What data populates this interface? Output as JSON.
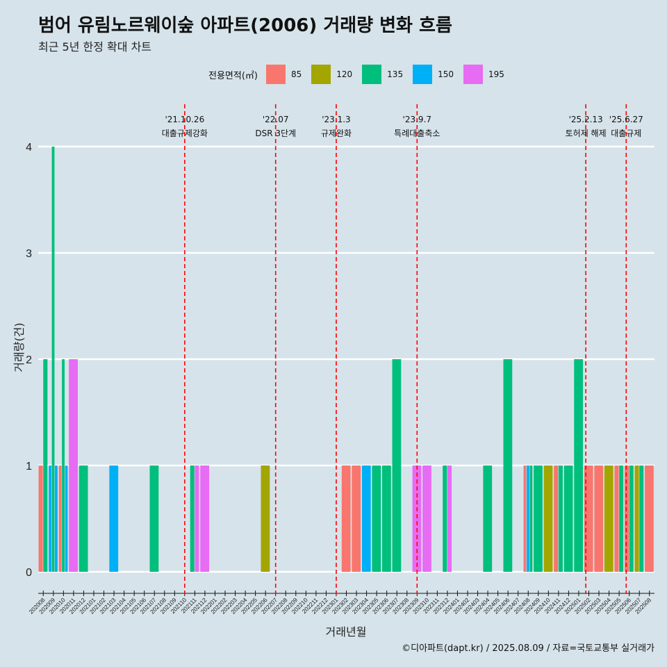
{
  "title": "범어 유림노르웨이숲 아파트(2006) 거래량 변화 흐름",
  "subtitle": "최근 5년 한정 확대 차트",
  "footer": "©디아파트(dapt.kr) / 2025.08.09 / 자료=국토교통부 실거래가",
  "colors": {
    "background": "#d6e3ea",
    "grid": "#ffffff",
    "event_line": "#ff0000"
  },
  "chart_data": {
    "type": "bar",
    "xlabel": "거래년월",
    "ylabel": "거래량(건)",
    "ylim": [
      0,
      4
    ],
    "y_ticks": [
      "0",
      "1",
      "2",
      "3",
      "4"
    ],
    "legend_title": "전용면적(㎡)",
    "legend_position": "top",
    "legend": [
      {
        "name": "85",
        "color": "#f8766d"
      },
      {
        "name": "120",
        "color": "#a3a500"
      },
      {
        "name": "135",
        "color": "#00bf7d"
      },
      {
        "name": "150",
        "color": "#00b0f6"
      },
      {
        "name": "195",
        "color": "#e76bf3"
      }
    ],
    "categories": [
      "202008",
      "202009",
      "202010",
      "202011",
      "202012",
      "202101",
      "202102",
      "202103",
      "202104",
      "202105",
      "202106",
      "202107",
      "202108",
      "202109",
      "202110",
      "202111",
      "202112",
      "202201",
      "202202",
      "202203",
      "202204",
      "202205",
      "202206",
      "202207",
      "202208",
      "202209",
      "202210",
      "202211",
      "202212",
      "202301",
      "202302",
      "202303",
      "202304",
      "202305",
      "202306",
      "202307",
      "202308",
      "202309",
      "202310",
      "202311",
      "202312",
      "202401",
      "202402",
      "202403",
      "202404",
      "202405",
      "202406",
      "202407",
      "202408",
      "202409",
      "202410",
      "202411",
      "202412",
      "202501",
      "202502",
      "202503",
      "202504",
      "202505",
      "202506",
      "202507",
      "202508"
    ],
    "bars": [
      {
        "month": "202008",
        "segments": [
          {
            "area": "85",
            "value": 1
          },
          {
            "area": "135",
            "value": 2
          }
        ]
      },
      {
        "month": "202009",
        "segments": [
          {
            "area": "150",
            "value": 1
          },
          {
            "area": "135",
            "value": 4
          },
          {
            "area": "150",
            "value": 1
          }
        ]
      },
      {
        "month": "202010",
        "segments": [
          {
            "area": "85",
            "value": 1
          },
          {
            "area": "135",
            "value": 2
          },
          {
            "area": "150",
            "value": 1
          }
        ]
      },
      {
        "month": "202011",
        "segments": [
          {
            "area": "195",
            "value": 2
          }
        ]
      },
      {
        "month": "202012",
        "segments": [
          {
            "area": "135",
            "value": 1
          }
        ]
      },
      {
        "month": "202103",
        "segments": [
          {
            "area": "150",
            "value": 1
          }
        ]
      },
      {
        "month": "202107",
        "segments": [
          {
            "area": "135",
            "value": 1
          }
        ]
      },
      {
        "month": "202111",
        "segments": [
          {
            "area": "135",
            "value": 1
          },
          {
            "area": "195",
            "value": 1
          }
        ]
      },
      {
        "month": "202112",
        "segments": [
          {
            "area": "195",
            "value": 1
          }
        ]
      },
      {
        "month": "202206",
        "segments": [
          {
            "area": "120",
            "value": 1
          }
        ]
      },
      {
        "month": "202302",
        "segments": [
          {
            "area": "85",
            "value": 1
          }
        ]
      },
      {
        "month": "202303",
        "segments": [
          {
            "area": "85",
            "value": 1
          }
        ]
      },
      {
        "month": "202304",
        "segments": [
          {
            "area": "150",
            "value": 1
          }
        ]
      },
      {
        "month": "202305",
        "segments": [
          {
            "area": "135",
            "value": 1
          }
        ]
      },
      {
        "month": "202306",
        "segments": [
          {
            "area": "135",
            "value": 1
          }
        ]
      },
      {
        "month": "202307",
        "segments": [
          {
            "area": "135",
            "value": 2
          }
        ]
      },
      {
        "month": "202309",
        "segments": [
          {
            "area": "195",
            "value": 1
          }
        ]
      },
      {
        "month": "202310",
        "segments": [
          {
            "area": "195",
            "value": 1
          }
        ]
      },
      {
        "month": "202312",
        "segments": [
          {
            "area": "135",
            "value": 1
          },
          {
            "area": "195",
            "value": 1
          }
        ]
      },
      {
        "month": "202404",
        "segments": [
          {
            "area": "135",
            "value": 1
          }
        ]
      },
      {
        "month": "202406",
        "segments": [
          {
            "area": "135",
            "value": 2
          }
        ]
      },
      {
        "month": "202408",
        "segments": [
          {
            "area": "85",
            "value": 1
          },
          {
            "area": "150",
            "value": 1
          },
          {
            "area": "135",
            "value": 1
          }
        ]
      },
      {
        "month": "202409",
        "segments": [
          {
            "area": "135",
            "value": 1
          }
        ]
      },
      {
        "month": "202410",
        "segments": [
          {
            "area": "120",
            "value": 1
          }
        ]
      },
      {
        "month": "202411",
        "segments": [
          {
            "area": "85",
            "value": 1
          },
          {
            "area": "135",
            "value": 1
          }
        ]
      },
      {
        "month": "202412",
        "segments": [
          {
            "area": "135",
            "value": 1
          }
        ]
      },
      {
        "month": "202501",
        "segments": [
          {
            "area": "135",
            "value": 2
          }
        ]
      },
      {
        "month": "202502",
        "segments": [
          {
            "area": "85",
            "value": 1
          }
        ]
      },
      {
        "month": "202503",
        "segments": [
          {
            "area": "85",
            "value": 1
          }
        ]
      },
      {
        "month": "202504",
        "segments": [
          {
            "area": "120",
            "value": 1
          }
        ]
      },
      {
        "month": "202505",
        "segments": [
          {
            "area": "85",
            "value": 1
          },
          {
            "area": "135",
            "value": 1
          }
        ]
      },
      {
        "month": "202506",
        "segments": [
          {
            "area": "85",
            "value": 1
          },
          {
            "area": "135",
            "value": 1
          }
        ]
      },
      {
        "month": "202507",
        "segments": [
          {
            "area": "120",
            "value": 1
          },
          {
            "area": "135",
            "value": 1
          }
        ]
      },
      {
        "month": "202508",
        "segments": [
          {
            "area": "85",
            "value": 1
          }
        ]
      }
    ],
    "events": [
      {
        "x": 14.5,
        "date": "'21.10.26",
        "label": "대출규제강화"
      },
      {
        "x": 23.5,
        "date": "'22.07",
        "label": "DSR 3단계"
      },
      {
        "x": 29.5,
        "date": "'23.1.3",
        "label": "규제완화"
      },
      {
        "x": 37.5,
        "date": "'23.9.7",
        "label": "특례대출축소"
      },
      {
        "x": 54.2,
        "date": "'25.2.13",
        "label": "토허제 해제"
      },
      {
        "x": 58.2,
        "date": "'25.6.27",
        "label": "대출규제"
      }
    ]
  }
}
